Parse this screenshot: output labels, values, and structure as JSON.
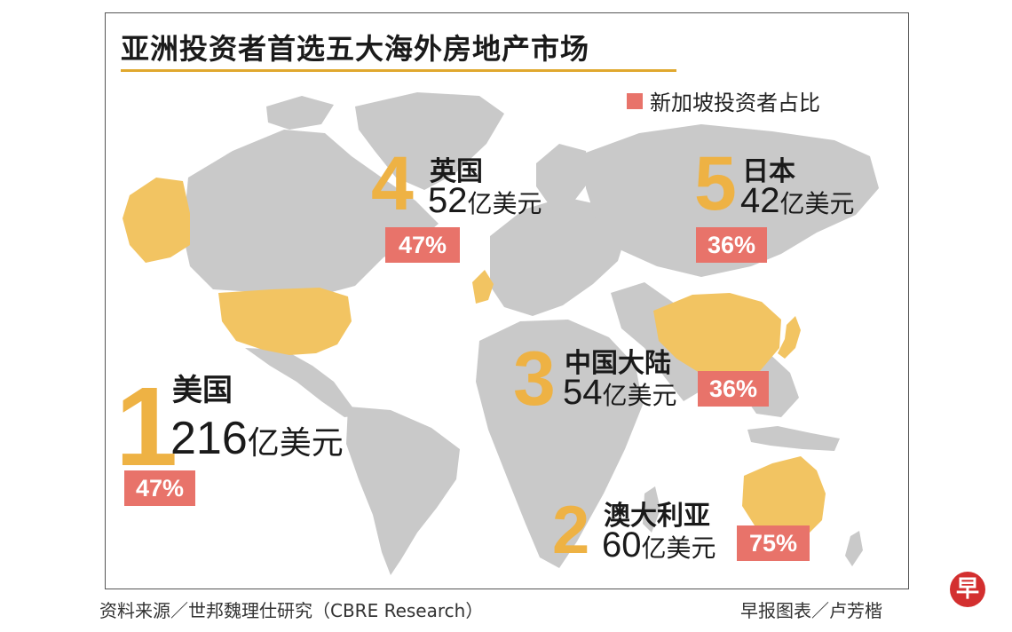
{
  "title": "亚洲投资者首选五大海外房地产市场",
  "legend": {
    "label": "新加坡投资者占比",
    "color": "#e8736a"
  },
  "colors": {
    "land": "#c9c9c9",
    "highlight": "#f2c462",
    "rank": "#eeb244",
    "badge": "#e8736a"
  },
  "markets": [
    {
      "rank": "1",
      "name": "美国",
      "amount": "216",
      "unit": "亿美元",
      "share": "47%",
      "share_value": 47
    },
    {
      "rank": "2",
      "name": "澳大利亚",
      "amount": "60",
      "unit": "亿美元",
      "share": "75%",
      "share_value": 75
    },
    {
      "rank": "3",
      "name": "中国大陆",
      "amount": "54",
      "unit": "亿美元",
      "share": "36%",
      "share_value": 36
    },
    {
      "rank": "4",
      "name": "英国",
      "amount": "52",
      "unit": "亿美元",
      "share": "47%",
      "share_value": 47
    },
    {
      "rank": "5",
      "name": "日本",
      "amount": "42",
      "unit": "亿美元",
      "share": "36%",
      "share_value": 36
    }
  ],
  "source": "资料来源／世邦魏理仕研究（CBRE Research）",
  "credit": "早报图表／卢芳楷",
  "logo": "早"
}
